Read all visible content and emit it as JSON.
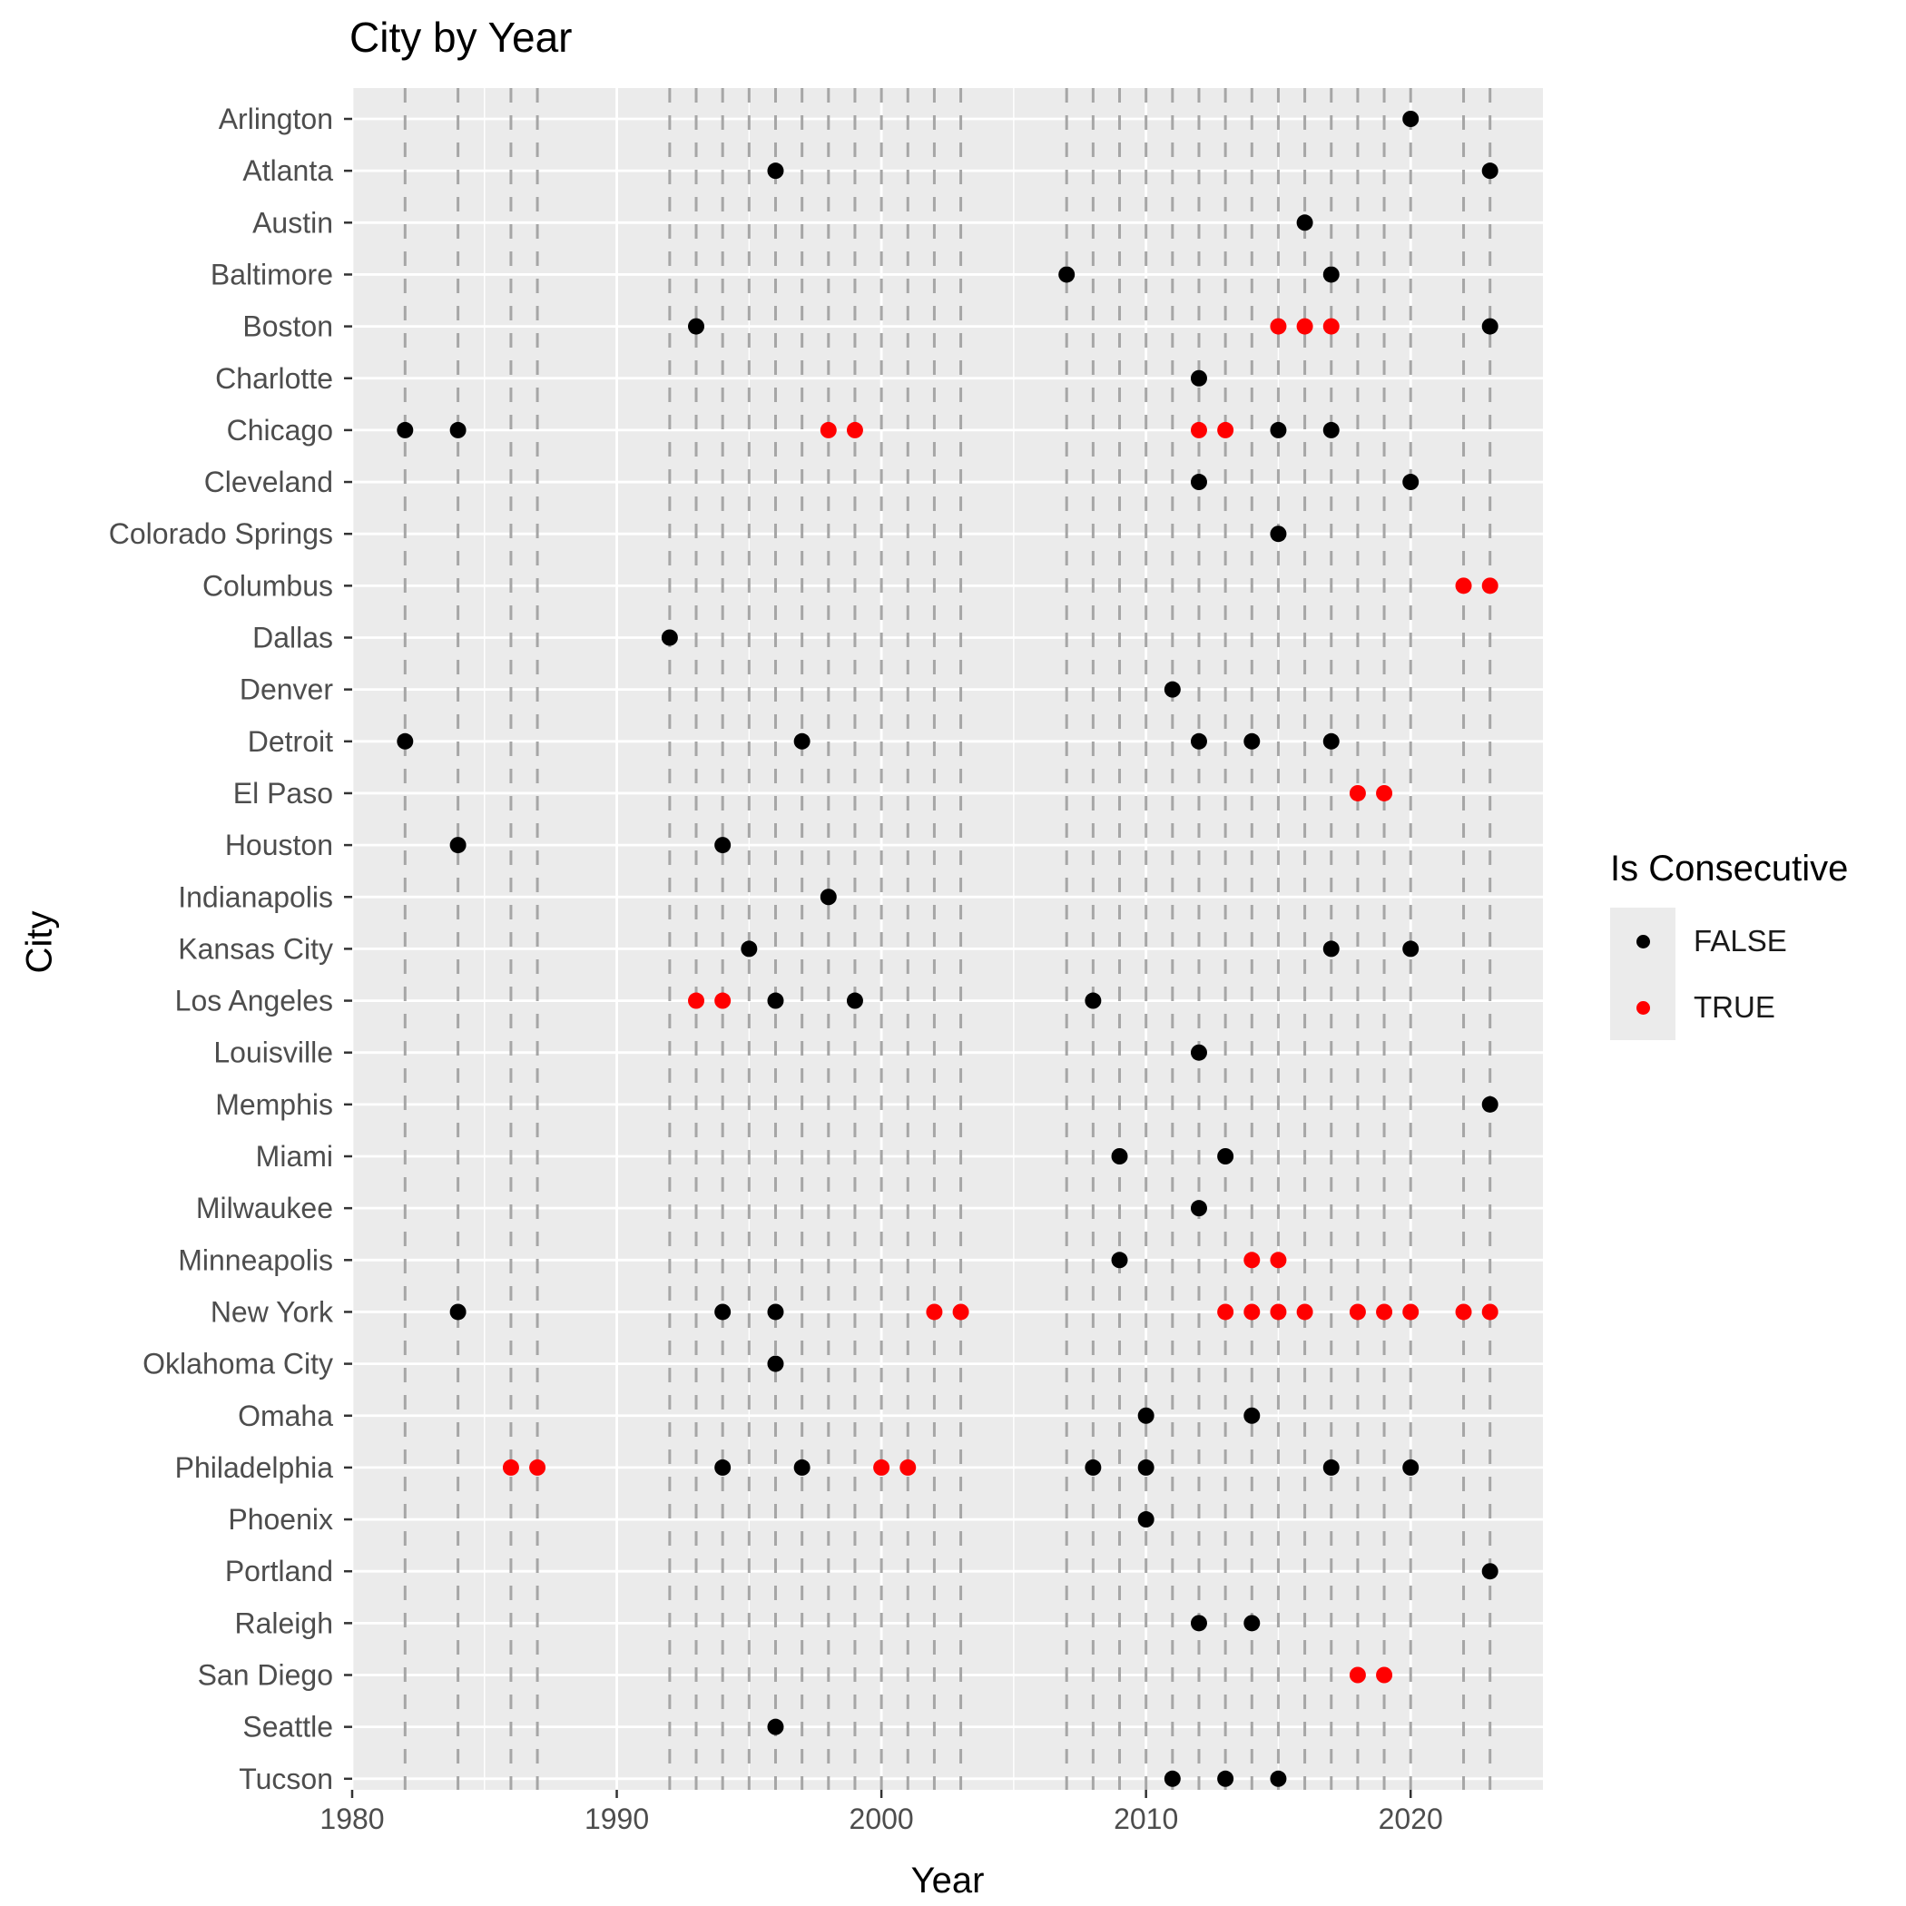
{
  "chart_data": {
    "type": "scatter",
    "title": "City by Year",
    "xlabel": "Year",
    "ylabel": "City",
    "xlim": [
      1980,
      2025
    ],
    "x_ticks": [
      1980,
      1990,
      2000,
      2010,
      2020
    ],
    "grid": true,
    "legend": {
      "title": "Is Consecutive",
      "position": "right",
      "entries": [
        {
          "label": "FALSE",
          "color": "#000000"
        },
        {
          "label": "TRUE",
          "color": "#ff0000"
        }
      ]
    },
    "dashed_reference_years": [
      1982,
      1984,
      1986,
      1987,
      1992,
      1993,
      1994,
      1995,
      1996,
      1997,
      1998,
      1999,
      2000,
      2001,
      2002,
      2003,
      2007,
      2008,
      2009,
      2010,
      2011,
      2012,
      2013,
      2014,
      2015,
      2016,
      2017,
      2018,
      2019,
      2020,
      2022,
      2023
    ],
    "categories": [
      "Arlington",
      "Atlanta",
      "Austin",
      "Baltimore",
      "Boston",
      "Charlotte",
      "Chicago",
      "Cleveland",
      "Colorado Springs",
      "Columbus",
      "Dallas",
      "Denver",
      "Detroit",
      "El Paso",
      "Houston",
      "Indianapolis",
      "Kansas City",
      "Los Angeles",
      "Louisville",
      "Memphis",
      "Miami",
      "Milwaukee",
      "Minneapolis",
      "New York",
      "Oklahoma City",
      "Omaha",
      "Philadelphia",
      "Phoenix",
      "Portland",
      "Raleigh",
      "San Diego",
      "Seattle",
      "Tucson"
    ],
    "series": [
      {
        "name": "FALSE",
        "color": "#000000",
        "points": [
          {
            "city": "Arlington",
            "year": 2020
          },
          {
            "city": "Atlanta",
            "year": 1996
          },
          {
            "city": "Atlanta",
            "year": 2023
          },
          {
            "city": "Austin",
            "year": 2016
          },
          {
            "city": "Baltimore",
            "year": 2007
          },
          {
            "city": "Baltimore",
            "year": 2017
          },
          {
            "city": "Boston",
            "year": 1993
          },
          {
            "city": "Boston",
            "year": 2023
          },
          {
            "city": "Charlotte",
            "year": 2012
          },
          {
            "city": "Chicago",
            "year": 1982
          },
          {
            "city": "Chicago",
            "year": 1984
          },
          {
            "city": "Chicago",
            "year": 2015
          },
          {
            "city": "Chicago",
            "year": 2017
          },
          {
            "city": "Cleveland",
            "year": 2012
          },
          {
            "city": "Cleveland",
            "year": 2020
          },
          {
            "city": "Colorado Springs",
            "year": 2015
          },
          {
            "city": "Dallas",
            "year": 1992
          },
          {
            "city": "Denver",
            "year": 2011
          },
          {
            "city": "Detroit",
            "year": 1982
          },
          {
            "city": "Detroit",
            "year": 1997
          },
          {
            "city": "Detroit",
            "year": 2012
          },
          {
            "city": "Detroit",
            "year": 2014
          },
          {
            "city": "Detroit",
            "year": 2017
          },
          {
            "city": "Houston",
            "year": 1984
          },
          {
            "city": "Houston",
            "year": 1994
          },
          {
            "city": "Indianapolis",
            "year": 1998
          },
          {
            "city": "Kansas City",
            "year": 1995
          },
          {
            "city": "Kansas City",
            "year": 2017
          },
          {
            "city": "Kansas City",
            "year": 2020
          },
          {
            "city": "Los Angeles",
            "year": 1996
          },
          {
            "city": "Los Angeles",
            "year": 1999
          },
          {
            "city": "Los Angeles",
            "year": 2008
          },
          {
            "city": "Louisville",
            "year": 2012
          },
          {
            "city": "Memphis",
            "year": 2023
          },
          {
            "city": "Miami",
            "year": 2009
          },
          {
            "city": "Miami",
            "year": 2013
          },
          {
            "city": "Milwaukee",
            "year": 2012
          },
          {
            "city": "Minneapolis",
            "year": 2009
          },
          {
            "city": "New York",
            "year": 1984
          },
          {
            "city": "New York",
            "year": 1994
          },
          {
            "city": "New York",
            "year": 1996
          },
          {
            "city": "Oklahoma City",
            "year": 1996
          },
          {
            "city": "Omaha",
            "year": 2010
          },
          {
            "city": "Omaha",
            "year": 2014
          },
          {
            "city": "Philadelphia",
            "year": 1994
          },
          {
            "city": "Philadelphia",
            "year": 1997
          },
          {
            "city": "Philadelphia",
            "year": 2008
          },
          {
            "city": "Philadelphia",
            "year": 2010
          },
          {
            "city": "Philadelphia",
            "year": 2017
          },
          {
            "city": "Philadelphia",
            "year": 2020
          },
          {
            "city": "Phoenix",
            "year": 2010
          },
          {
            "city": "Portland",
            "year": 2023
          },
          {
            "city": "Raleigh",
            "year": 2012
          },
          {
            "city": "Raleigh",
            "year": 2014
          },
          {
            "city": "Seattle",
            "year": 1996
          },
          {
            "city": "Tucson",
            "year": 2011
          },
          {
            "city": "Tucson",
            "year": 2013
          },
          {
            "city": "Tucson",
            "year": 2015
          }
        ]
      },
      {
        "name": "TRUE",
        "color": "#ff0000",
        "points": [
          {
            "city": "Boston",
            "year": 2015
          },
          {
            "city": "Boston",
            "year": 2016
          },
          {
            "city": "Boston",
            "year": 2017
          },
          {
            "city": "Chicago",
            "year": 1998
          },
          {
            "city": "Chicago",
            "year": 1999
          },
          {
            "city": "Chicago",
            "year": 2012
          },
          {
            "city": "Chicago",
            "year": 2013
          },
          {
            "city": "Columbus",
            "year": 2022
          },
          {
            "city": "Columbus",
            "year": 2023
          },
          {
            "city": "El Paso",
            "year": 2018
          },
          {
            "city": "El Paso",
            "year": 2019
          },
          {
            "city": "Los Angeles",
            "year": 1993
          },
          {
            "city": "Los Angeles",
            "year": 1994
          },
          {
            "city": "Minneapolis",
            "year": 2014
          },
          {
            "city": "Minneapolis",
            "year": 2015
          },
          {
            "city": "New York",
            "year": 2002
          },
          {
            "city": "New York",
            "year": 2003
          },
          {
            "city": "New York",
            "year": 2013
          },
          {
            "city": "New York",
            "year": 2014
          },
          {
            "city": "New York",
            "year": 2015
          },
          {
            "city": "New York",
            "year": 2016
          },
          {
            "city": "New York",
            "year": 2018
          },
          {
            "city": "New York",
            "year": 2019
          },
          {
            "city": "New York",
            "year": 2020
          },
          {
            "city": "New York",
            "year": 2022
          },
          {
            "city": "New York",
            "year": 2023
          },
          {
            "city": "Philadelphia",
            "year": 1986
          },
          {
            "city": "Philadelphia",
            "year": 1987
          },
          {
            "city": "Philadelphia",
            "year": 2000
          },
          {
            "city": "Philadelphia",
            "year": 2001
          },
          {
            "city": "San Diego",
            "year": 2018
          },
          {
            "city": "San Diego",
            "year": 2019
          }
        ]
      }
    ]
  }
}
